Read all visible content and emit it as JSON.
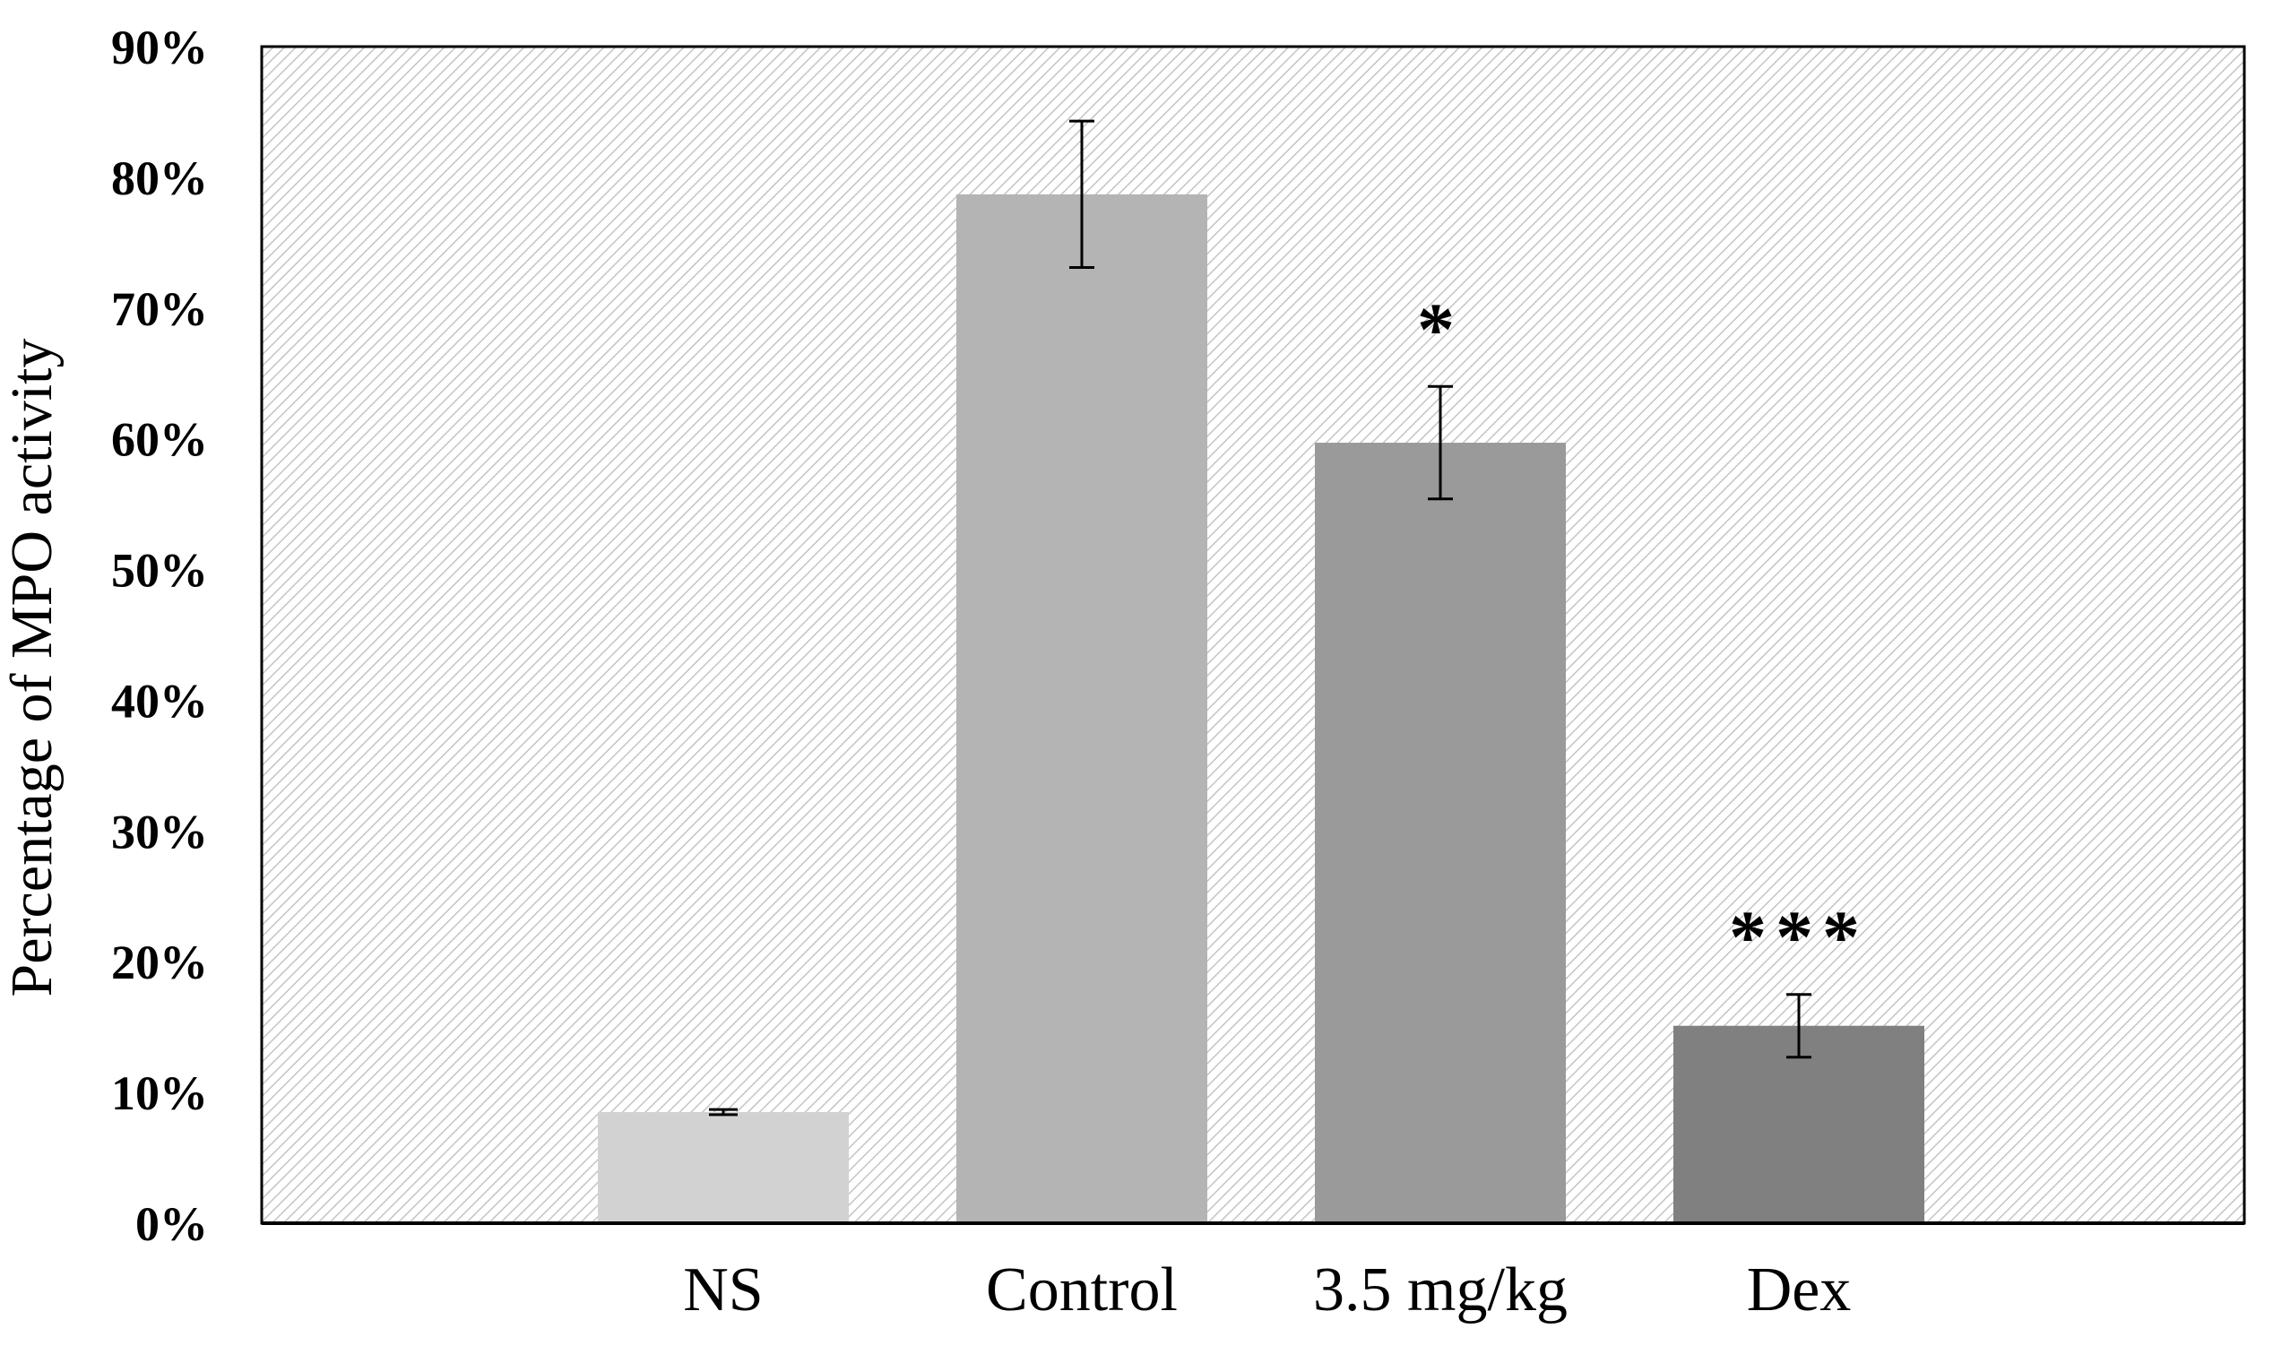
{
  "chart_data": {
    "type": "bar",
    "title": "",
    "xlabel": "",
    "ylabel": "Percentage of MPO activity",
    "categories": [
      "NS",
      "Control",
      "3.5 mg/kg",
      "Dex"
    ],
    "values": [
      0.085,
      0.787,
      0.597,
      0.151
    ],
    "error": [
      0.002,
      0.056,
      0.043,
      0.024
    ],
    "significance": [
      "",
      "",
      "*",
      "***"
    ],
    "ylim": [
      0,
      0.9
    ],
    "yticks": [
      0,
      0.1,
      0.2,
      0.3,
      0.4,
      0.5,
      0.6,
      0.7,
      0.8,
      0.9
    ],
    "ytick_labels": [
      "0%",
      "10%",
      "20%",
      "30%",
      "40%",
      "50%",
      "60%",
      "70%",
      "80%",
      "90%"
    ],
    "bar_colors": [
      "#d2d2d2",
      "#b4b4b4",
      "#9a9a9a",
      "#808080"
    ],
    "grid": false,
    "legend": "none",
    "plot_background": "diagonal-hatch"
  }
}
